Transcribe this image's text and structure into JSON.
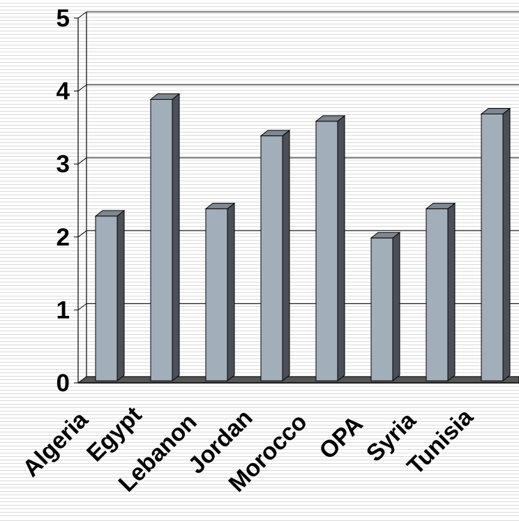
{
  "chart_data": {
    "type": "bar",
    "categories": [
      "Algeria",
      "Egypt",
      "Lebanon",
      "Jordan",
      "Morocco",
      "OPA",
      "Syria",
      "Tunisia"
    ],
    "values": [
      2.2,
      3.8,
      2.3,
      3.3,
      3.5,
      1.9,
      2.3,
      3.6
    ],
    "title": "",
    "xlabel": "",
    "ylabel": "",
    "ylim": [
      0,
      5
    ],
    "y_ticks": [
      "0",
      "1",
      "2",
      "3",
      "4",
      "5"
    ],
    "grid": true,
    "style": "3d-column",
    "colors": {
      "bar_front": "#a3aebb",
      "bar_side": "#4b5058",
      "bar_top": "#7f8791",
      "floor": "#555555",
      "gridline": "#000000",
      "background": "#ffffff"
    }
  }
}
